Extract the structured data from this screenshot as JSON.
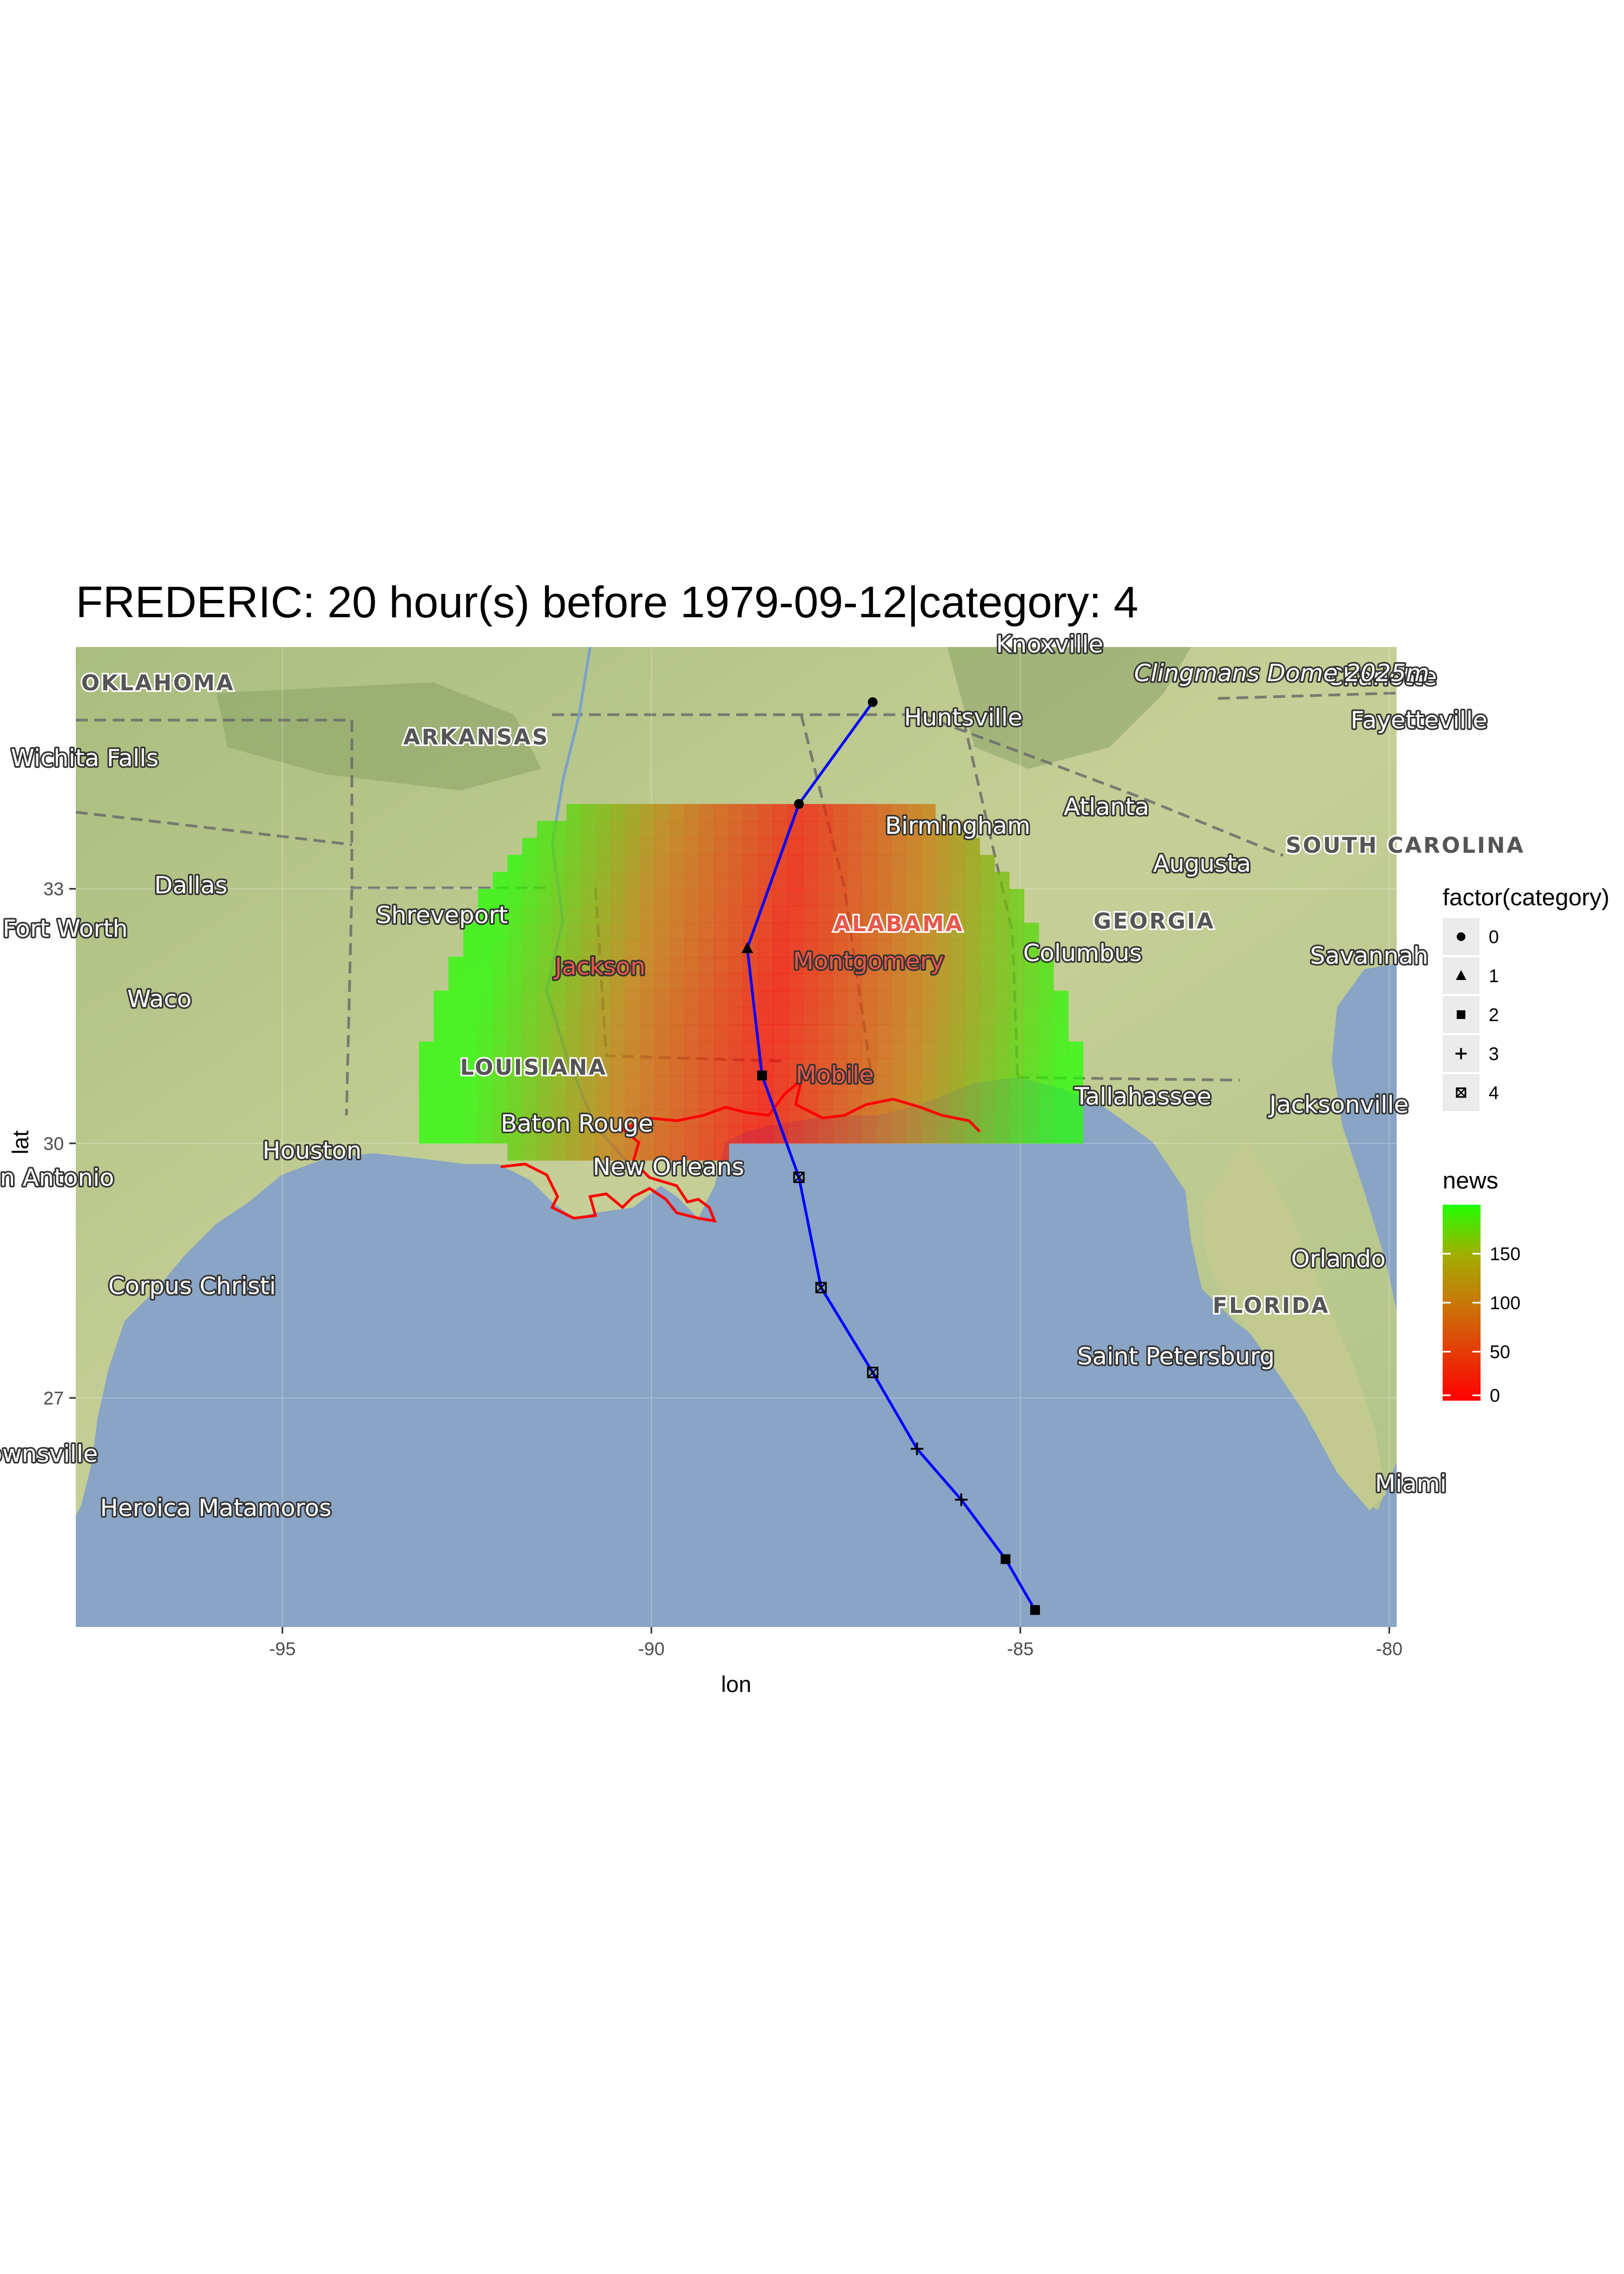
{
  "title": "FREDERIC: 20 hour(s) before 1979-09-12|category: 4",
  "axes": {
    "xlabel": "lon",
    "ylabel": "lat",
    "xticks": [
      -95,
      -90,
      -85,
      -80
    ],
    "yticks": [
      27,
      30,
      33
    ],
    "xlim": [
      -97.8,
      -79.9
    ],
    "ylim": [
      24.3,
      35.85
    ]
  },
  "legends": {
    "shape": {
      "title": "factor(category)",
      "entries": [
        {
          "label": "0",
          "shape": "circle"
        },
        {
          "label": "1",
          "shape": "triangle"
        },
        {
          "label": "2",
          "shape": "square"
        },
        {
          "label": "3",
          "shape": "plus"
        },
        {
          "label": "4",
          "shape": "square-cross"
        }
      ]
    },
    "color": {
      "title": "news",
      "ticks": [
        0,
        50,
        100,
        150
      ],
      "range": [
        0,
        200
      ],
      "low_color": "#ff0000",
      "mid_color": "#aaaa00",
      "high_color": "#22ff00"
    }
  },
  "colors": {
    "track": "#0000ff",
    "coast": "#ff0000",
    "water": "#89a4c5",
    "land": "#b8c98e",
    "panel": "#ebebeb"
  },
  "map_labels": {
    "cities": [
      "Huntsville",
      "Birmingham",
      "Atlanta",
      "Augusta",
      "Dallas",
      "Shreveport",
      "Jackson",
      "Montgomery",
      "Columbus",
      "Savannah",
      "Waco",
      "Houston",
      "Baton Rouge",
      "New Orleans",
      "Mobile",
      "Tallahassee",
      "Jacksonville",
      "Orlando",
      "Corpus Christi",
      "Saint Petersburg",
      "Heroica Matamoros",
      "Charlotte",
      "Fayetteville",
      "Clingmans Dome 2025m",
      "Miami",
      "Wichita Falls",
      "Fort Worth",
      "San Antonio",
      "Brownsville",
      "Knoxville"
    ],
    "states": [
      "OKLAHOMA",
      "ARKANSAS",
      "ALABAMA",
      "GEORGIA",
      "SOUTH CAROLINA",
      "LOUISIANA",
      "FLORIDA"
    ]
  },
  "chart_data": {
    "type": "scatter",
    "title": "FREDERIC: 20 hour(s) before 1979-09-12|category: 4",
    "xlabel": "lon",
    "ylabel": "lat",
    "track": [
      {
        "lon": -84.8,
        "lat": 24.5,
        "category": 2
      },
      {
        "lon": -85.2,
        "lat": 25.1,
        "category": 2
      },
      {
        "lon": -85.8,
        "lat": 25.8,
        "category": 3
      },
      {
        "lon": -86.4,
        "lat": 26.4,
        "category": 3
      },
      {
        "lon": -87.0,
        "lat": 27.3,
        "category": 4
      },
      {
        "lon": -87.7,
        "lat": 28.3,
        "category": 4
      },
      {
        "lon": -88.0,
        "lat": 29.6,
        "category": 4
      },
      {
        "lon": -88.5,
        "lat": 30.8,
        "category": 2
      },
      {
        "lon": -88.7,
        "lat": 32.3,
        "category": 1
      },
      {
        "lon": -88.0,
        "lat": 34.0,
        "category": 0
      },
      {
        "lon": -87.0,
        "lat": 35.2,
        "category": 0
      }
    ],
    "swath": {
      "center": {
        "lon": -88.75,
        "lat": 30.3
      },
      "radius_deg": 4.6,
      "news_min": 0,
      "news_max": 200
    }
  }
}
